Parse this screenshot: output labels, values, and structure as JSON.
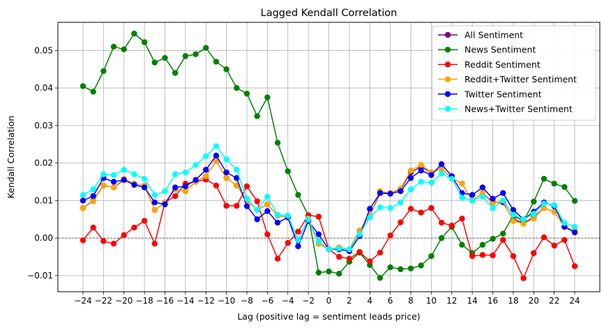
{
  "chart_data": {
    "type": "line",
    "title": "Lagged Kendall Correlation",
    "xlabel": "Lag (positive lag = sentiment leads price)",
    "ylabel": "Kendall Correlation",
    "xlim": [
      -26.45,
      26.45
    ],
    "ylim": [
      -0.0143,
      0.0575
    ],
    "xticks": [
      -24,
      -22,
      -20,
      -18,
      -16,
      -14,
      -12,
      -10,
      -8,
      -6,
      -4,
      -2,
      0,
      2,
      4,
      6,
      8,
      10,
      12,
      14,
      16,
      18,
      20,
      22,
      24
    ],
    "xtick_labels": [
      "−24",
      "−22",
      "−20",
      "−18",
      "−16",
      "−14",
      "−12",
      "−10",
      "−8",
      "−6",
      "−4",
      "−2",
      "0",
      "2",
      "4",
      "6",
      "8",
      "10",
      "12",
      "14",
      "16",
      "18",
      "20",
      "22",
      "24"
    ],
    "yticks": [
      -0.01,
      0.0,
      0.01,
      0.02,
      0.03,
      0.04,
      0.05
    ],
    "ytick_labels": [
      "−0.01",
      "0.00",
      "0.01",
      "0.02",
      "0.03",
      "0.04",
      "0.05"
    ],
    "grid": true,
    "zero_line": true,
    "legend_position": "upper-right",
    "x": [
      -24,
      -23,
      -22,
      -21,
      -20,
      -19,
      -18,
      -17,
      -16,
      -15,
      -14,
      -13,
      -12,
      -11,
      -10,
      -9,
      -8,
      -7,
      -6,
      -5,
      -4,
      -3,
      -2,
      -1,
      0,
      1,
      2,
      3,
      4,
      5,
      6,
      7,
      8,
      9,
      10,
      11,
      12,
      13,
      14,
      15,
      16,
      17,
      18,
      19,
      20,
      21,
      22,
      23,
      24
    ],
    "series": [
      {
        "name": "All Sentiment",
        "color": "#800080",
        "values": [
          0.008,
          0.01,
          0.014,
          0.0135,
          0.0155,
          0.0145,
          0.014,
          0.0075,
          0.0095,
          0.013,
          0.0125,
          0.015,
          0.0165,
          0.0205,
          0.016,
          0.014,
          0.01,
          0.0075,
          0.009,
          0.006,
          0.0055,
          -0.0005,
          0.005,
          -0.0015,
          -0.003,
          -0.0025,
          -0.003,
          0.002,
          0.006,
          0.012,
          0.012,
          0.013,
          0.0175,
          0.019,
          0.0175,
          0.0185,
          0.016,
          0.0145,
          0.01,
          0.012,
          0.0095,
          0.0095,
          0.005,
          0.004,
          0.0055,
          0.008,
          0.007,
          0.003,
          0.002
        ]
      },
      {
        "name": "News Sentiment",
        "color": "#008000",
        "values": [
          0.0405,
          0.039,
          0.0445,
          0.051,
          0.0503,
          0.0545,
          0.0522,
          0.0468,
          0.048,
          0.044,
          0.0485,
          0.049,
          0.0507,
          0.047,
          0.045,
          0.04,
          0.0385,
          0.0325,
          0.0375,
          0.0254,
          0.0178,
          0.0115,
          0.006,
          -0.0092,
          -0.0089,
          -0.0095,
          -0.0063,
          -0.0039,
          -0.0072,
          -0.0106,
          -0.0078,
          -0.0083,
          -0.0081,
          -0.0073,
          -0.0048,
          0.0,
          0.003,
          -0.0018,
          -0.004,
          -0.0018,
          -0.0002,
          0.0012,
          0.006,
          0.0045,
          0.0097,
          0.0158,
          0.0145,
          0.0136,
          0.0099
        ]
      },
      {
        "name": "Reddit Sentiment",
        "color": "#ff0000",
        "values": [
          -0.0006,
          0.0028,
          -0.0008,
          -0.0015,
          0.0008,
          0.0028,
          0.0046,
          -0.0015,
          0.0095,
          0.0112,
          0.0145,
          0.015,
          0.0156,
          0.014,
          0.0086,
          0.0086,
          0.0138,
          0.0098,
          0.001,
          -0.0055,
          -0.0013,
          0.0017,
          0.0061,
          0.0057,
          -0.003,
          -0.005,
          -0.0055,
          -0.0037,
          -0.0062,
          -0.0039,
          0.0007,
          0.0042,
          0.0078,
          0.0068,
          0.008,
          0.0041,
          0.0033,
          0.0052,
          -0.0048,
          -0.0045,
          -0.0046,
          -0.0005,
          -0.0048,
          -0.0107,
          -0.004,
          0.0002,
          -0.002,
          -0.0005,
          -0.0075
        ]
      },
      {
        "name": "Reddit+Twitter Sentiment",
        "color": "#ffa500",
        "values": [
          0.008,
          0.0098,
          0.014,
          0.0135,
          0.0158,
          0.0145,
          0.014,
          0.0075,
          0.0095,
          0.013,
          0.0125,
          0.015,
          0.0165,
          0.0205,
          0.016,
          0.014,
          0.01,
          0.0075,
          0.009,
          0.006,
          0.0055,
          -0.0005,
          0.0052,
          -0.0015,
          -0.003,
          -0.0025,
          -0.003,
          0.002,
          0.006,
          0.0125,
          0.012,
          0.0132,
          0.018,
          0.0195,
          0.0175,
          0.0185,
          0.016,
          0.0145,
          0.01,
          0.012,
          0.0092,
          0.01,
          0.0045,
          0.0038,
          0.0052,
          0.008,
          0.007,
          0.003,
          0.002
        ]
      },
      {
        "name": "Twitter Sentiment",
        "color": "#0000ff",
        "values": [
          0.01,
          0.0112,
          0.016,
          0.015,
          0.0155,
          0.0142,
          0.0135,
          0.0095,
          0.009,
          0.0135,
          0.0138,
          0.0155,
          0.0182,
          0.022,
          0.0175,
          0.016,
          0.0085,
          0.005,
          0.0072,
          0.0041,
          0.0055,
          -0.0022,
          0.0045,
          0.001,
          -0.003,
          -0.003,
          -0.0035,
          0.0005,
          0.0078,
          0.012,
          0.0118,
          0.0125,
          0.016,
          0.018,
          0.0168,
          0.0197,
          0.0165,
          0.012,
          0.0115,
          0.0135,
          0.0105,
          0.012,
          0.0075,
          0.005,
          0.007,
          0.0095,
          0.0085,
          0.003,
          0.0015
        ]
      },
      {
        "name": "News+Twitter Sentiment",
        "color": "#00ffff",
        "values": [
          0.0115,
          0.013,
          0.017,
          0.0168,
          0.0182,
          0.017,
          0.0158,
          0.0115,
          0.0125,
          0.017,
          0.0175,
          0.0195,
          0.0218,
          0.0245,
          0.021,
          0.0182,
          0.0105,
          0.0075,
          0.011,
          0.0062,
          0.006,
          -0.0005,
          0.005,
          -0.0008,
          -0.003,
          -0.0028,
          -0.003,
          0.001,
          0.0055,
          0.0082,
          0.008,
          0.0095,
          0.013,
          0.015,
          0.0148,
          0.0172,
          0.0158,
          0.0108,
          0.01,
          0.011,
          0.008,
          0.01,
          0.0062,
          0.005,
          0.0065,
          0.0092,
          0.0088,
          0.004,
          0.003
        ]
      }
    ]
  }
}
